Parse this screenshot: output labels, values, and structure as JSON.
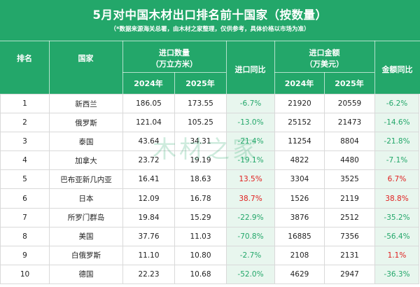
{
  "title": "5月对中国木材出口排名前十国家（按数量）",
  "subtitle": "（*数据来源海关总署，由木材之家整理，仅供参考，具体价格以市场为准）",
  "headers": {
    "rank": "排名",
    "country": "国家",
    "volume_group_line1": "进口数量",
    "volume_group_line2": "（万立方米）",
    "volume_yoy": "进口同比",
    "amount_group_line1": "进口金额",
    "amount_group_line2": "（万美元）",
    "amount_yoy": "金额同比",
    "year_2024": "2024年",
    "year_2025": "2025年"
  },
  "watermark": "木材之家",
  "colors": {
    "header_green": "#23a76a",
    "negative": "#23a76a",
    "positive": "#e02020"
  },
  "rows": [
    {
      "rank": "1",
      "country": "新西兰",
      "v2024": "186.05",
      "v2025": "173.55",
      "vyoy": "-6.7%",
      "a2024": "21920",
      "a2025": "20559",
      "ayoy": "-6.2%"
    },
    {
      "rank": "2",
      "country": "俄罗斯",
      "v2024": "121.04",
      "v2025": "105.25",
      "vyoy": "-13.0%",
      "a2024": "25152",
      "a2025": "21473",
      "ayoy": "-14.6%"
    },
    {
      "rank": "3",
      "country": "泰国",
      "v2024": "43.64",
      "v2025": "34.31",
      "vyoy": "-21.4%",
      "a2024": "11254",
      "a2025": "8804",
      "ayoy": "-21.8%"
    },
    {
      "rank": "4",
      "country": "加拿大",
      "v2024": "23.72",
      "v2025": "19.19",
      "vyoy": "-19.1%",
      "a2024": "4822",
      "a2025": "4480",
      "ayoy": "-7.1%"
    },
    {
      "rank": "5",
      "country": "巴布亚新几内亚",
      "v2024": "16.41",
      "v2025": "18.63",
      "vyoy": "13.5%",
      "a2024": "3304",
      "a2025": "3525",
      "ayoy": "6.7%"
    },
    {
      "rank": "6",
      "country": "日本",
      "v2024": "12.09",
      "v2025": "16.78",
      "vyoy": "38.7%",
      "a2024": "1526",
      "a2025": "2119",
      "ayoy": "38.8%"
    },
    {
      "rank": "7",
      "country": "所罗门群岛",
      "v2024": "19.84",
      "v2025": "15.29",
      "vyoy": "-22.9%",
      "a2024": "3876",
      "a2025": "2512",
      "ayoy": "-35.2%"
    },
    {
      "rank": "8",
      "country": "美国",
      "v2024": "37.76",
      "v2025": "11.03",
      "vyoy": "-70.8%",
      "a2024": "16885",
      "a2025": "7356",
      "ayoy": "-56.4%"
    },
    {
      "rank": "9",
      "country": "白俄罗斯",
      "v2024": "11.10",
      "v2025": "10.80",
      "vyoy": "-2.7%",
      "a2024": "2108",
      "a2025": "2131",
      "ayoy": "1.1%"
    },
    {
      "rank": "10",
      "country": "德国",
      "v2024": "22.23",
      "v2025": "10.68",
      "vyoy": "-52.0%",
      "a2024": "4629",
      "a2025": "2947",
      "ayoy": "-36.3%"
    }
  ]
}
